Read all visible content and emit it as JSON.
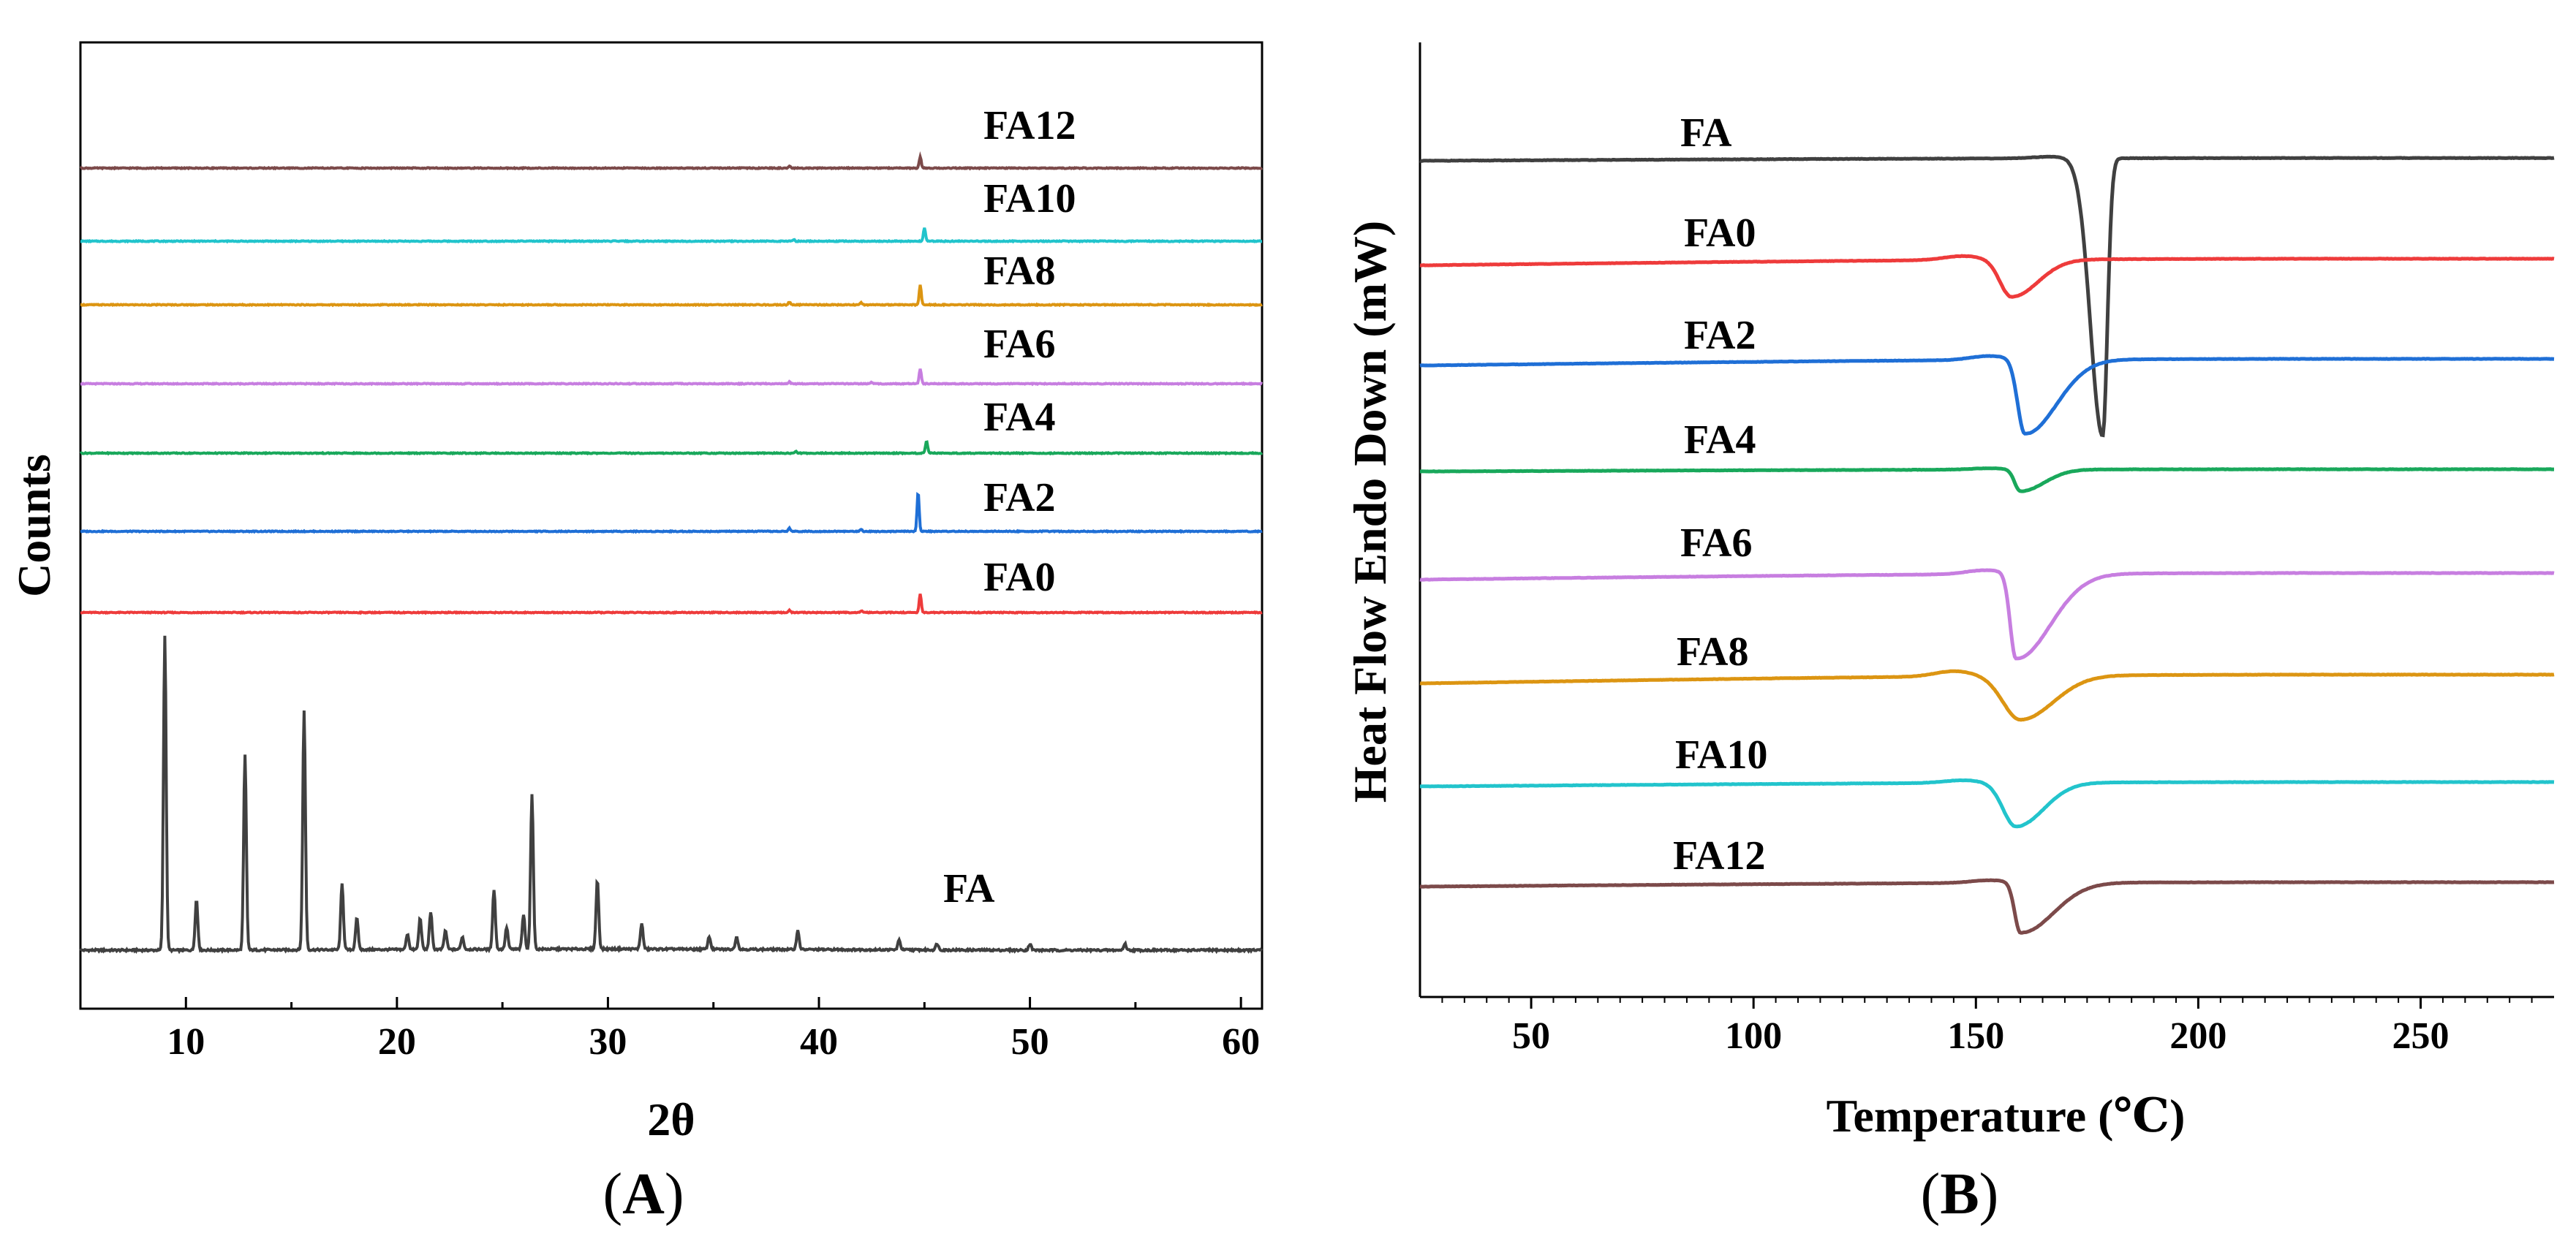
{
  "chart_data": [
    {
      "type": "line",
      "panel_label": "A",
      "xlabel": "2θ",
      "ylabel": "Counts",
      "xlim": [
        5,
        61
      ],
      "xticks": [
        10,
        20,
        30,
        40,
        50,
        60
      ],
      "grid": false,
      "series": [
        {
          "name": "FA",
          "color": "#404040",
          "peaks": [
            [
              9.0,
              1.0
            ],
            [
              10.5,
              0.16
            ],
            [
              12.8,
              0.62
            ],
            [
              15.6,
              0.76
            ],
            [
              17.4,
              0.21
            ],
            [
              18.1,
              0.1
            ],
            [
              20.5,
              0.05
            ],
            [
              21.1,
              0.1
            ],
            [
              21.6,
              0.12
            ],
            [
              22.3,
              0.06
            ],
            [
              23.1,
              0.04
            ],
            [
              24.6,
              0.19
            ],
            [
              25.2,
              0.07
            ],
            [
              26.0,
              0.11
            ],
            [
              26.4,
              0.49
            ],
            [
              29.5,
              0.22
            ],
            [
              31.6,
              0.08
            ],
            [
              34.8,
              0.04
            ],
            [
              36.1,
              0.04
            ],
            [
              39.0,
              0.06
            ],
            [
              43.8,
              0.03
            ],
            [
              45.6,
              0.02
            ],
            [
              50.0,
              0.02
            ],
            [
              54.5,
              0.02
            ]
          ]
        },
        {
          "name": "FA0",
          "color": "#ee3b3b",
          "peaks": [
            [
              44.8,
              0.085
            ],
            [
              38.6,
              0.01
            ],
            [
              42.0,
              0.008
            ]
          ]
        },
        {
          "name": "FA2",
          "color": "#1f6fd6",
          "peaks": [
            [
              44.7,
              0.18
            ],
            [
              38.6,
              0.015
            ],
            [
              42.0,
              0.01
            ]
          ]
        },
        {
          "name": "FA4",
          "color": "#19a85b",
          "peaks": [
            [
              45.1,
              0.055
            ],
            [
              38.9,
              0.008
            ]
          ]
        },
        {
          "name": "FA6",
          "color": "#c77ee0",
          "peaks": [
            [
              44.8,
              0.07
            ],
            [
              38.6,
              0.008
            ],
            [
              42.5,
              0.006
            ]
          ]
        },
        {
          "name": "FA8",
          "color": "#dc9512",
          "peaks": [
            [
              44.8,
              0.09
            ],
            [
              38.6,
              0.012
            ],
            [
              42.0,
              0.01
            ]
          ]
        },
        {
          "name": "FA10",
          "color": "#22c4cc",
          "peaks": [
            [
              45.0,
              0.06
            ],
            [
              38.8,
              0.008
            ]
          ]
        },
        {
          "name": "FA12",
          "color": "#7c4a4a",
          "peaks": [
            [
              44.8,
              0.05
            ],
            [
              38.6,
              0.008
            ]
          ]
        }
      ]
    },
    {
      "type": "line",
      "panel_label": "B",
      "xlabel": "Temperature (℃)",
      "ylabel": "Heat Flow Endo Down (mW)",
      "xlim": [
        25,
        280
      ],
      "xticks": [
        50,
        100,
        150,
        200,
        250
      ],
      "grid": false,
      "series": [
        {
          "name": "FA",
          "color": "#404040",
          "onset": 170,
          "peak_temp": 178.5,
          "peak_depth": 1.0,
          "end": 182,
          "drift": 0.01
        },
        {
          "name": "FA0",
          "color": "#ee3b3b",
          "onset": 150,
          "peak_temp": 158,
          "peak_depth": 0.17,
          "end": 178,
          "drift": 0.03
        },
        {
          "name": "FA2",
          "color": "#1f6fd6",
          "onset": 156,
          "peak_temp": 161,
          "peak_depth": 0.34,
          "end": 185,
          "drift": 0.03
        },
        {
          "name": "FA4",
          "color": "#19a85b",
          "onset": 156,
          "peak_temp": 160,
          "peak_depth": 0.1,
          "end": 178,
          "drift": 0.01
        },
        {
          "name": "FA6",
          "color": "#c77ee0",
          "onset": 155,
          "peak_temp": 159,
          "peak_depth": 0.39,
          "end": 185,
          "drift": 0.03
        },
        {
          "name": "FA8",
          "color": "#dc9512",
          "onset": 148,
          "peak_temp": 160,
          "peak_depth": 0.2,
          "end": 185,
          "drift": 0.04
        },
        {
          "name": "FA10",
          "color": "#22c4cc",
          "onset": 150,
          "peak_temp": 159,
          "peak_depth": 0.2,
          "end": 180,
          "drift": 0.02
        },
        {
          "name": "FA12",
          "color": "#7c4a4a",
          "onset": 156,
          "peak_temp": 160,
          "peak_depth": 0.23,
          "end": 185,
          "drift": 0.02
        }
      ]
    }
  ]
}
